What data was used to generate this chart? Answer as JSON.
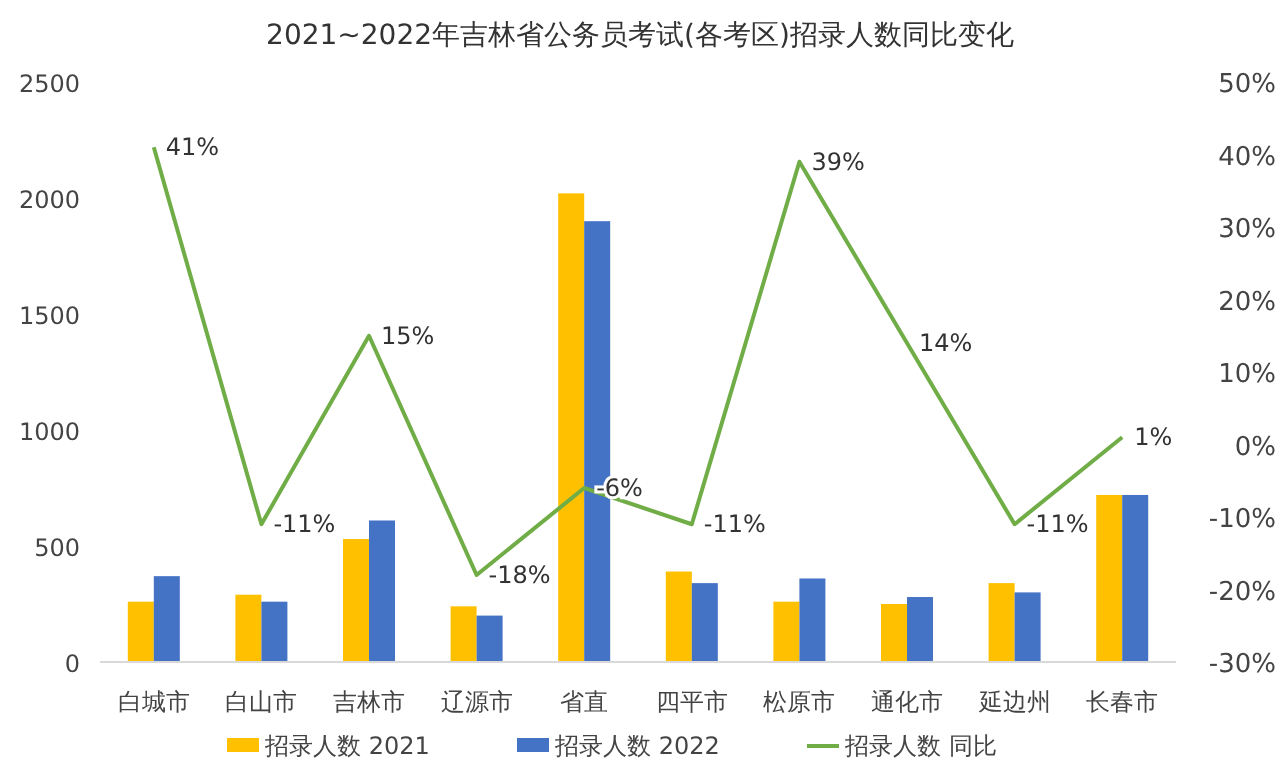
{
  "chart_data": {
    "type": "bar",
    "title": "2021~2022年吉林省公务员考试(各考区)招录人数同比变化",
    "categories": [
      "白城市",
      "白山市",
      "吉林市",
      "辽源市",
      "省直",
      "四平市",
      "松原市",
      "通化市",
      "延边州",
      "长春市"
    ],
    "series": [
      {
        "name": "招录人数 2021",
        "color": "#ffc000",
        "values": [
          260,
          290,
          530,
          240,
          2020,
          390,
          260,
          250,
          340,
          720
        ]
      },
      {
        "name": "招录人数 2022",
        "color": "#4472c4",
        "values": [
          370,
          260,
          610,
          200,
          1900,
          340,
          360,
          280,
          300,
          720
        ]
      },
      {
        "name": "招录人数 同比",
        "type": "line",
        "axis": "y2",
        "color": "#70ad47",
        "values": [
          41,
          -11,
          15,
          -18,
          -6,
          -11,
          39,
          14,
          -11,
          1
        ],
        "value_labels": [
          "41%",
          "-11%",
          "15%",
          "-18%",
          "-6%",
          "-11%",
          "39%",
          "14%",
          "-11%",
          "1%"
        ]
      }
    ],
    "ylim": [
      0,
      2500
    ],
    "yticks": [
      0,
      500,
      1000,
      1500,
      2000,
      2500
    ],
    "y2lim": [
      -30,
      50
    ],
    "y2ticks": [
      {
        "value": -30,
        "label": "-30%"
      },
      {
        "value": -20,
        "label": "-20%"
      },
      {
        "value": -10,
        "label": "-10%"
      },
      {
        "value": 0,
        "label": "0%"
      },
      {
        "value": 10,
        "label": "10%"
      },
      {
        "value": 20,
        "label": "20%"
      },
      {
        "value": 30,
        "label": "30%"
      },
      {
        "value": 40,
        "label": "40%"
      },
      {
        "value": 50,
        "label": "50%"
      }
    ],
    "legend": "bottom"
  }
}
